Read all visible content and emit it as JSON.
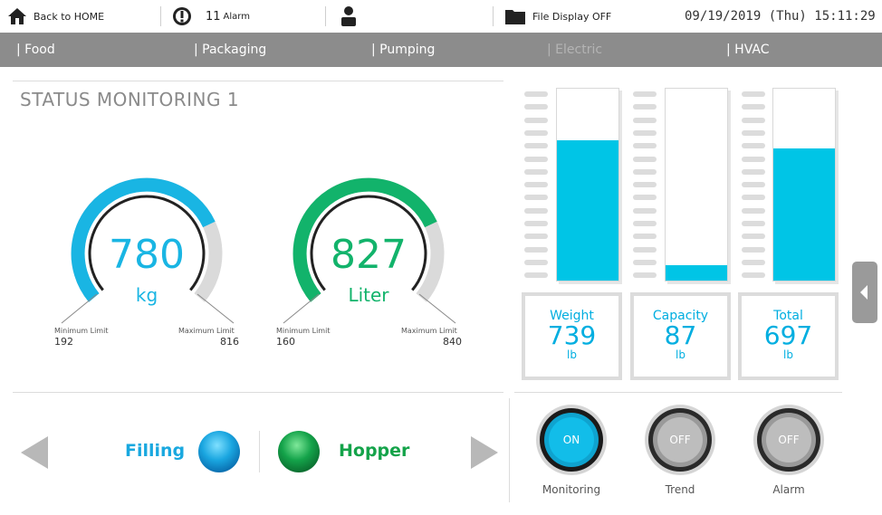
{
  "topbar": {
    "back_label": "Back to HOME",
    "alarm_count": "11",
    "alarm_label": "Alarm",
    "file_display_label": "File Display OFF",
    "datetime": "09/19/2019 (Thu) 15:11:29"
  },
  "tabs": [
    {
      "label": "| Food",
      "active": true
    },
    {
      "label": "| Packaging"
    },
    {
      "label": "| Pumping"
    },
    {
      "label": "| Electric",
      "disabled": true
    },
    {
      "label": "| HVAC"
    }
  ],
  "page_title": "STATUS MONITORING 1",
  "gauges": [
    {
      "value": "780",
      "unit": "kg",
      "min_label": "Minimum Limit",
      "min": "192",
      "max_label": "Maximum Limit",
      "max": "816",
      "color": "#19b5e3",
      "fraction": 0.75
    },
    {
      "value": "827",
      "unit": "Liter",
      "min_label": "Minimum Limit",
      "min": "160",
      "max_label": "Maximum Limit",
      "max": "840",
      "color": "#12b36b",
      "fraction": 0.75
    }
  ],
  "bars": [
    {
      "label": "Weight",
      "value": "739",
      "unit": "lb",
      "fill": 0.73
    },
    {
      "label": "Capacity",
      "value": "87",
      "unit": "lb",
      "fill": 0.08
    },
    {
      "label": "Total",
      "value": "697",
      "unit": "lb",
      "fill": 0.69
    }
  ],
  "indicators": [
    {
      "label": "Filling",
      "color": "#1aa6e0"
    },
    {
      "label": "Hopper",
      "color": "#14a34a"
    }
  ],
  "toggles": [
    {
      "label": "Monitoring",
      "state": "ON"
    },
    {
      "label": "Trend",
      "state": "OFF"
    },
    {
      "label": "Alarm",
      "state": "OFF"
    }
  ],
  "colors": {
    "accent": "#00c5e6",
    "green": "#12b36b",
    "nav": "#8c8c8c"
  }
}
